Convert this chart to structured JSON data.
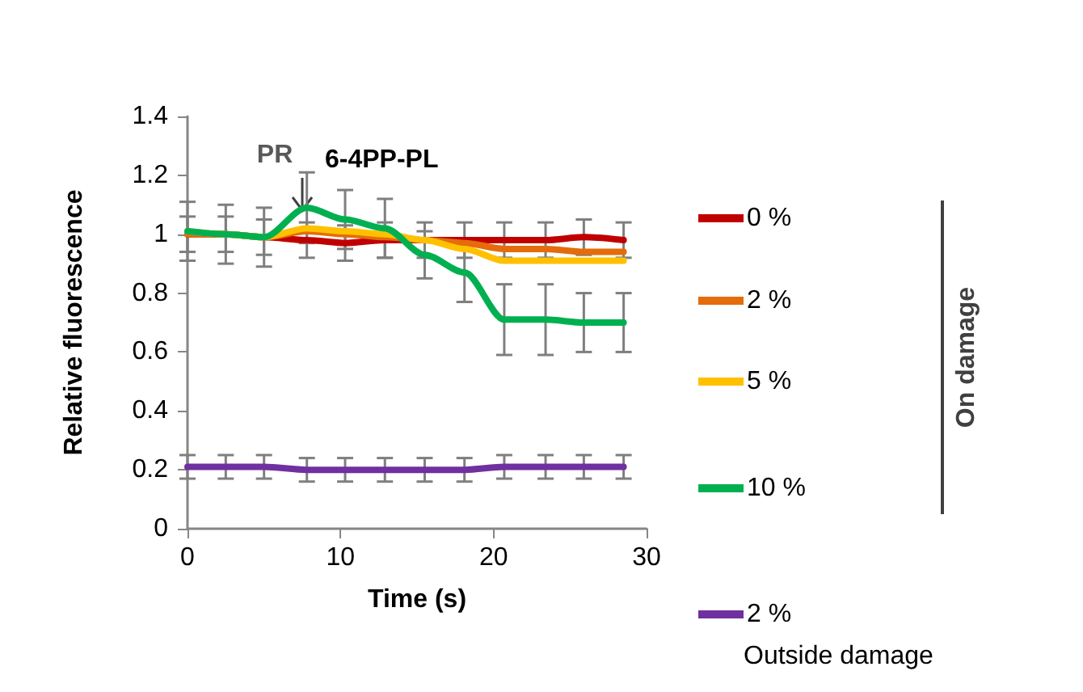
{
  "chart_data": {
    "type": "line",
    "title": "6-4PP-PL",
    "xlabel": "Time (s)",
    "ylabel": "Relative fluorescence",
    "x": [
      0,
      2.5,
      5,
      7.8,
      10.3,
      12.9,
      15.5,
      18.1,
      20.7,
      23.4,
      25.9,
      28.5
    ],
    "series": [
      {
        "name": "0 %",
        "color": "#c00000",
        "values": [
          1.0,
          1.0,
          0.99,
          0.98,
          0.97,
          0.98,
          0.98,
          0.98,
          0.98,
          0.98,
          0.99,
          0.98
        ],
        "errors": [
          0.06,
          0.06,
          0.06,
          0.06,
          0.06,
          0.06,
          0.06,
          0.06,
          0.06,
          0.06,
          0.06,
          0.06
        ]
      },
      {
        "name": "2 %",
        "color": "#e46c0a",
        "values": [
          1.0,
          1.0,
          0.99,
          1.01,
          1.0,
          0.99,
          0.98,
          0.97,
          0.95,
          0.95,
          0.94,
          0.94
        ]
      },
      {
        "name": "5 %",
        "color": "#ffc000",
        "values": [
          1.01,
          1.0,
          0.99,
          1.02,
          1.01,
          1.0,
          0.98,
          0.95,
          0.91,
          0.91,
          0.91,
          0.91
        ]
      },
      {
        "name": "10 %",
        "color": "#00b050",
        "values": [
          1.01,
          1.0,
          0.99,
          1.09,
          1.05,
          1.02,
          0.93,
          0.87,
          0.71,
          0.71,
          0.7,
          0.7
        ],
        "errors": [
          0.1,
          0.1,
          0.1,
          0.12,
          0.1,
          0.1,
          0.08,
          0.1,
          0.12,
          0.12,
          0.1,
          0.1
        ]
      },
      {
        "name": "2 %",
        "color": "#7030a0",
        "values": [
          0.21,
          0.21,
          0.21,
          0.2,
          0.2,
          0.2,
          0.2,
          0.2,
          0.21,
          0.21,
          0.21,
          0.21
        ],
        "errors": [
          0.04,
          0.04,
          0.04,
          0.04,
          0.04,
          0.04,
          0.04,
          0.04,
          0.04,
          0.04,
          0.04,
          0.04
        ]
      }
    ],
    "xlim": [
      0,
      30
    ],
    "xticks": [
      0,
      10,
      20,
      30
    ],
    "ylim": [
      0,
      1.4
    ],
    "yticks": [
      0,
      0.2,
      0.4,
      0.6,
      0.8,
      1,
      1.2,
      1.4
    ],
    "grid": false,
    "legend": "right",
    "marker": "none",
    "line_style": "solid",
    "annotations": [
      "PR",
      "On damage",
      "Outside damage"
    ]
  }
}
